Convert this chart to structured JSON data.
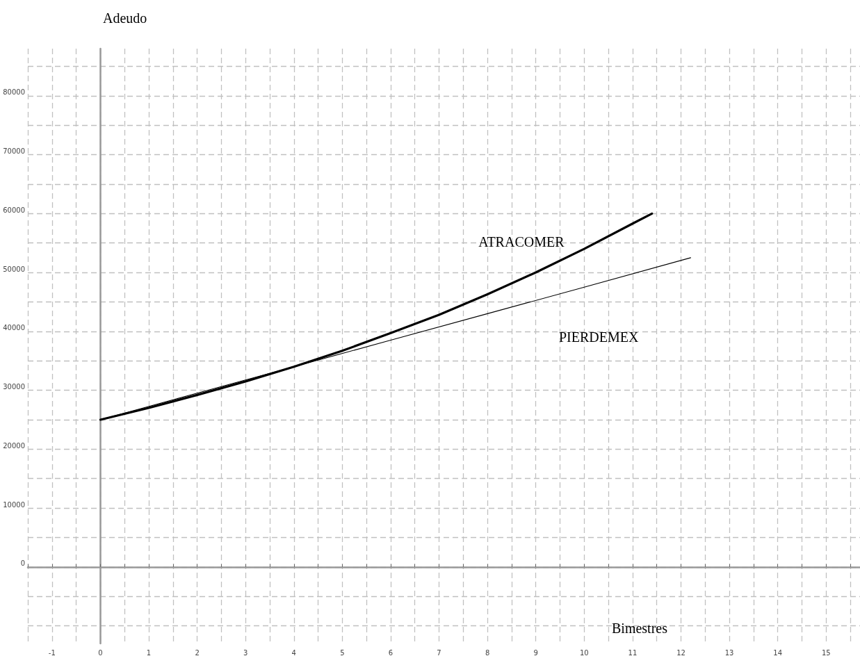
{
  "chart_data": {
    "type": "line",
    "xlabel": "Bimestres",
    "ylabel": "Adeudo",
    "xlim": [
      -1.5,
      15.7
    ],
    "ylim": [
      -13000,
      88000
    ],
    "xticks": [
      {
        "value": -1.5,
        "label": null
      },
      -1,
      {
        "value": -0.5,
        "label": null
      },
      0,
      {
        "value": 0.5,
        "label": null
      },
      1,
      {
        "value": 1.5,
        "label": null
      },
      2,
      {
        "value": 2.5,
        "label": null
      },
      3,
      {
        "value": 3.5,
        "label": null
      },
      4,
      {
        "value": 4.5,
        "label": null
      },
      5,
      {
        "value": 5.5,
        "label": null
      },
      6,
      {
        "value": 6.5,
        "label": null
      },
      7,
      {
        "value": 7.5,
        "label": null
      },
      8,
      {
        "value": 8.5,
        "label": null
      },
      9,
      {
        "value": 9.5,
        "label": null
      },
      10,
      {
        "value": 10.5,
        "label": null
      },
      11,
      {
        "value": 11.5,
        "label": null
      },
      12,
      {
        "value": 12.5,
        "label": null
      },
      13,
      {
        "value": 13.5,
        "label": null
      },
      14,
      {
        "value": 14.5,
        "label": null
      },
      15,
      {
        "value": 15.5,
        "label": null
      }
    ],
    "yticks": [
      {
        "value": -10000,
        "label": null
      },
      {
        "value": -5000,
        "label": null
      },
      0,
      {
        "value": 5000,
        "label": null
      },
      10000,
      {
        "value": 15000,
        "label": null
      },
      20000,
      {
        "value": 25000,
        "label": null
      },
      30000,
      {
        "value": 35000,
        "label": null
      },
      40000,
      {
        "value": 45000,
        "label": null
      },
      50000,
      {
        "value": 55000,
        "label": null
      },
      60000,
      {
        "value": 65000,
        "label": null
      },
      70000,
      {
        "value": 75000,
        "label": null
      },
      80000,
      {
        "value": 85000,
        "label": null
      }
    ],
    "grid": true,
    "legend": false,
    "marker": "none",
    "line_style": "solid",
    "series": [
      {
        "name": "ATRACOMER",
        "color": "#000000",
        "x": [
          0,
          1,
          2,
          3,
          4,
          5,
          6,
          7,
          8,
          9,
          10,
          11,
          11.4
        ],
        "values": [
          25000,
          27000,
          29200,
          31500,
          34000,
          36700,
          39700,
          42800,
          46300,
          50000,
          54000,
          58300,
          60000
        ]
      },
      {
        "name": "PIERDEMEX",
        "color": "#000000",
        "x": [
          0,
          2,
          4,
          6,
          8,
          10,
          12.2
        ],
        "values": [
          25000,
          29500,
          34000,
          38500,
          43000,
          47500,
          52500
        ]
      }
    ]
  }
}
